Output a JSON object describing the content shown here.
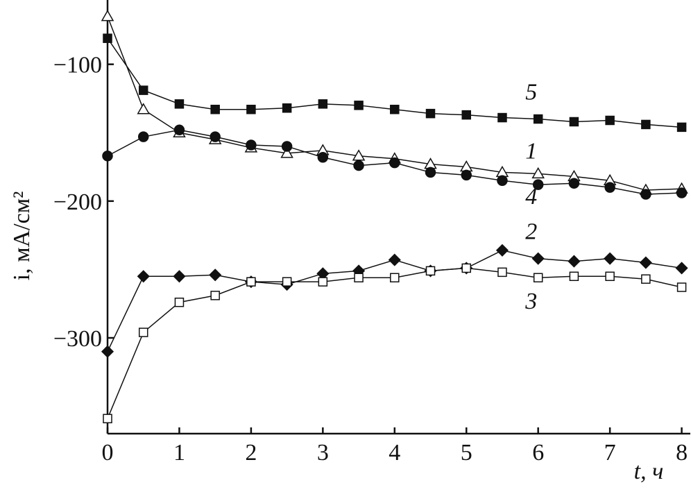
{
  "chart_data": {
    "type": "line",
    "x_label": "t, ч",
    "y_label": "i, мА/см²",
    "x": [
      0,
      0.5,
      1,
      1.5,
      2,
      2.5,
      3,
      3.5,
      4,
      4.5,
      5,
      5.5,
      6,
      6.5,
      7,
      7.5,
      8
    ],
    "series": [
      {
        "name": "1",
        "marker": "triangle-open",
        "color": "#111",
        "values": [
          -65,
          -133,
          -150,
          -155,
          -161,
          -165,
          -163,
          -167,
          -169,
          -173,
          -175,
          -179,
          -180,
          -182,
          -185,
          -192,
          -191
        ]
      },
      {
        "name": "2",
        "marker": "diamond-filled",
        "color": "#111",
        "values": [
          -310,
          -255,
          -255,
          -254,
          -259,
          -261,
          -253,
          -251,
          -243,
          -251,
          -249,
          -236,
          -242,
          -244,
          -242,
          -245,
          -249
        ]
      },
      {
        "name": "3",
        "marker": "square-open",
        "color": "#111",
        "values": [
          -359,
          -296,
          -274,
          -269,
          -259,
          -259,
          -259,
          -256,
          -256,
          -251,
          -249,
          -252,
          -256,
          -255,
          -255,
          -257,
          -263
        ]
      },
      {
        "name": "4",
        "marker": "circle-filled",
        "color": "#111",
        "values": [
          -167,
          -153,
          -148,
          -153,
          -159,
          -160,
          -168,
          -174,
          -172,
          -179,
          -181,
          -185,
          -188,
          -187,
          -190,
          -195,
          -194
        ]
      },
      {
        "name": "5",
        "marker": "square-filled",
        "color": "#111",
        "values": [
          -81,
          -119,
          -129,
          -133,
          -133,
          -132,
          -129,
          -130,
          -133,
          -136,
          -137,
          -139,
          -140,
          -142,
          -141,
          -144,
          -146
        ]
      }
    ],
    "xlim": [
      0,
      8.12
    ],
    "ylim": [
      -370,
      -53
    ],
    "xticks": [
      0,
      1,
      2,
      3,
      4,
      5,
      6,
      7,
      8
    ],
    "yticks": [
      {
        "value": -100,
        "label": "−100"
      },
      {
        "value": -200,
        "label": "−200"
      },
      {
        "value": -300,
        "label": "−300"
      }
    ],
    "grid": false
  }
}
